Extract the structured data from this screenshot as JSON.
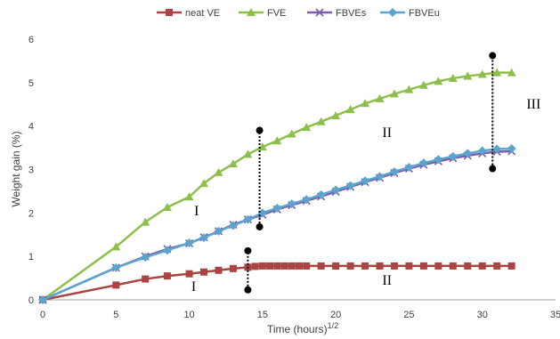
{
  "chart_data": {
    "type": "line",
    "title": "",
    "xlabel": "Time (hours)",
    "xlabel_sup": "1/2",
    "ylabel": "Weight gain (%)",
    "xlim": [
      0,
      35
    ],
    "ylim": [
      0,
      6
    ],
    "xticks": [
      0,
      5,
      10,
      15,
      20,
      25,
      30,
      35
    ],
    "yticks": [
      0,
      1,
      2,
      3,
      4,
      5,
      6
    ],
    "grid": false,
    "legend_position": "top-center",
    "series": [
      {
        "name": "neat VE",
        "color": "#A94442",
        "marker": "square",
        "x": [
          0,
          5,
          7,
          8.5,
          10,
          11,
          12,
          13,
          14,
          14.5,
          15,
          15.5,
          16,
          16.5,
          17,
          17.5,
          18,
          19,
          20,
          21,
          22,
          23,
          24,
          25,
          26,
          27,
          28,
          29,
          30,
          31,
          32
        ],
        "y": [
          0,
          0.34,
          0.48,
          0.55,
          0.6,
          0.64,
          0.68,
          0.72,
          0.75,
          0.77,
          0.78,
          0.78,
          0.78,
          0.78,
          0.78,
          0.78,
          0.78,
          0.78,
          0.78,
          0.78,
          0.78,
          0.78,
          0.78,
          0.78,
          0.78,
          0.78,
          0.78,
          0.78,
          0.78,
          0.78,
          0.78
        ]
      },
      {
        "name": "FVE",
        "color": "#8DC04A",
        "marker": "triangle",
        "x": [
          0,
          5,
          7,
          8.5,
          10,
          11,
          12,
          13,
          14,
          15,
          16,
          17,
          18,
          19,
          20,
          21,
          22,
          23,
          24,
          25,
          26,
          27,
          28,
          29,
          30,
          31,
          32
        ],
        "y": [
          0,
          1.22,
          1.79,
          2.13,
          2.37,
          2.68,
          2.93,
          3.13,
          3.35,
          3.52,
          3.66,
          3.82,
          3.97,
          4.1,
          4.24,
          4.38,
          4.52,
          4.63,
          4.74,
          4.84,
          4.94,
          5.03,
          5.1,
          5.15,
          5.19,
          5.23,
          5.23
        ]
      },
      {
        "name": "FBVEs",
        "color": "#7B5EA7",
        "marker": "x",
        "x": [
          0,
          5,
          7,
          8.5,
          10,
          11,
          12,
          13,
          14,
          15,
          16,
          17,
          18,
          19,
          20,
          21,
          22,
          23,
          24,
          25,
          26,
          27,
          28,
          29,
          30,
          31,
          32
        ],
        "y": [
          0,
          0.74,
          1.0,
          1.17,
          1.3,
          1.44,
          1.58,
          1.73,
          1.85,
          1.96,
          2.08,
          2.18,
          2.28,
          2.38,
          2.49,
          2.6,
          2.71,
          2.81,
          2.92,
          3.02,
          3.11,
          3.19,
          3.26,
          3.32,
          3.37,
          3.41,
          3.42
        ]
      },
      {
        "name": "FBVEu",
        "color": "#5BA4CF",
        "marker": "diamond",
        "x": [
          0,
          5,
          7,
          8.5,
          10,
          11,
          12,
          13,
          14,
          15,
          16,
          17,
          18,
          19,
          20,
          21,
          22,
          23,
          24,
          25,
          26,
          27,
          28,
          29,
          30,
          31,
          32
        ],
        "y": [
          0,
          0.74,
          0.98,
          1.14,
          1.31,
          1.43,
          1.58,
          1.71,
          1.85,
          2.0,
          2.11,
          2.21,
          2.31,
          2.42,
          2.53,
          2.63,
          2.74,
          2.84,
          2.95,
          3.05,
          3.15,
          3.23,
          3.3,
          3.37,
          3.43,
          3.47,
          3.48
        ]
      }
    ],
    "annotations": [
      {
        "kind": "dotted-line",
        "x": 14.8,
        "y1": 1.68,
        "y2": 3.9,
        "color": "#000000"
      },
      {
        "kind": "dotted-line",
        "x": 14.0,
        "y1": 0.23,
        "y2": 1.13,
        "color": "#000000"
      },
      {
        "kind": "dotted-line",
        "x": 30.7,
        "y1": 3.02,
        "y2": 5.62,
        "color": "#000000"
      },
      {
        "kind": "text",
        "text": "I",
        "x": 10.5,
        "y": 1.95
      },
      {
        "kind": "text",
        "text": "II",
        "x": 23.5,
        "y": 3.75
      },
      {
        "kind": "text",
        "text": "III",
        "x": 33.5,
        "y": 4.4
      },
      {
        "kind": "text",
        "text": "I",
        "x": 10.3,
        "y": 0.2
      },
      {
        "kind": "text",
        "text": "II",
        "x": 23.5,
        "y": 0.35
      }
    ]
  }
}
